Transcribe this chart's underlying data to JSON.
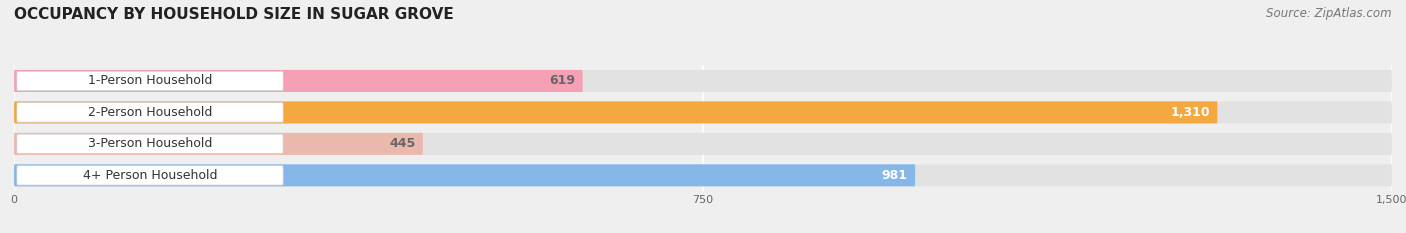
{
  "title": "OCCUPANCY BY HOUSEHOLD SIZE IN SUGAR GROVE",
  "source": "Source: ZipAtlas.com",
  "categories": [
    "1-Person Household",
    "2-Person Household",
    "3-Person Household",
    "4+ Person Household"
  ],
  "values": [
    619,
    1310,
    445,
    981
  ],
  "bar_colors": [
    "#f5a0b5",
    "#f5a840",
    "#ebb8ae",
    "#85b8e8"
  ],
  "value_label_colors": [
    "#666666",
    "#ffffff",
    "#666666",
    "#ffffff"
  ],
  "xlim_max": 1500,
  "xticks": [
    0,
    750,
    1500
  ],
  "bg_color": "#efefef",
  "bar_bg_color": "#e2e2e2",
  "title_fontsize": 11,
  "source_fontsize": 8.5,
  "cat_fontsize": 9,
  "val_fontsize": 9
}
